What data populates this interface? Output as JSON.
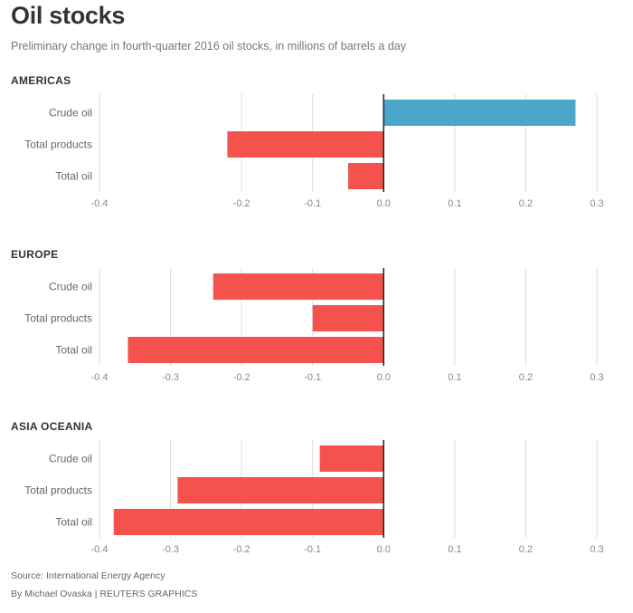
{
  "title": "Oil stocks",
  "subtitle": "Preliminary change in fourth-quarter 2016 oil stocks, in millions of barrels a day",
  "colors": {
    "positive": "#4aa7c9",
    "negative": "#f4524c",
    "grid": "#dddddd",
    "zero_line": "#222222"
  },
  "chart_data": [
    {
      "type": "bar",
      "orientation": "horizontal",
      "title": "AMERICAS",
      "categories": [
        "Crude oil",
        "Total products",
        "Total oil"
      ],
      "values": [
        0.27,
        -0.22,
        -0.05
      ],
      "xlim": [
        -0.4,
        0.3
      ],
      "ticks": [
        -0.4,
        -0.2,
        -0.1,
        0.0,
        0.1,
        0.2,
        0.3
      ],
      "tick_labels": [
        "-0.4",
        "-0.2",
        "-0.1",
        "0.0",
        "0.1",
        "0.2",
        "0.3"
      ],
      "grid": true
    },
    {
      "type": "bar",
      "orientation": "horizontal",
      "title": "EUROPE",
      "categories": [
        "Crude oil",
        "Total products",
        "Total oil"
      ],
      "values": [
        -0.24,
        -0.1,
        -0.36
      ],
      "xlim": [
        -0.4,
        0.3
      ],
      "ticks": [
        -0.4,
        -0.3,
        -0.2,
        -0.1,
        0.0,
        0.1,
        0.2,
        0.3
      ],
      "tick_labels": [
        "-0.4",
        "-0.3",
        "-0.2",
        "-0.1",
        "0.0",
        "0.1",
        "0.2",
        "0.3"
      ],
      "grid": true
    },
    {
      "type": "bar",
      "orientation": "horizontal",
      "title": "ASIA OCEANIA",
      "categories": [
        "Crude oil",
        "Total products",
        "Total oil"
      ],
      "values": [
        -0.09,
        -0.29,
        -0.38
      ],
      "xlim": [
        -0.4,
        0.3
      ],
      "ticks": [
        -0.4,
        -0.3,
        -0.2,
        -0.1,
        0.0,
        0.1,
        0.2,
        0.3
      ],
      "tick_labels": [
        "-0.4",
        "-0.3",
        "-0.2",
        "-0.1",
        "0.0",
        "0.1",
        "0.2",
        "0.3"
      ],
      "grid": true
    }
  ],
  "footer": {
    "source": "Source: International Energy Agency",
    "credit": "By Michael Ovaska | REUTERS GRAPHICS"
  }
}
